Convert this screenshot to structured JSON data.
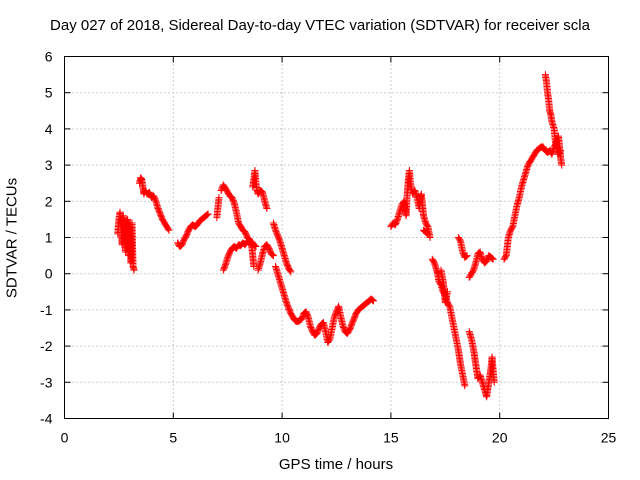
{
  "chart_data": {
    "type": "scatter",
    "title": "Day 027 of 2018, Sidereal Day-to-day VTEC variation (SDTVAR) for receiver scla",
    "xlabel": "GPS time / hours",
    "ylabel": "SDTVAR / TECUs",
    "xlim": [
      0,
      25
    ],
    "ylim": [
      -4,
      6
    ],
    "xticks": [
      "0",
      "5",
      "10",
      "15",
      "20",
      "25"
    ],
    "yticks": [
      "-4",
      "-3",
      "-2",
      "-1",
      "0",
      "1",
      "2",
      "3",
      "4",
      "5",
      "6"
    ],
    "grid": true,
    "marker": "plus",
    "color": "#ff0000",
    "series": [
      {
        "name": "SDTVAR",
        "segments": [
          [
            [
              2.45,
              1.1
            ],
            [
              2.5,
              1.5
            ],
            [
              2.55,
              1.7
            ],
            [
              2.6,
              1.3
            ],
            [
              2.65,
              0.8
            ],
            [
              2.7,
              1.6
            ],
            [
              2.75,
              1.2
            ],
            [
              2.8,
              0.6
            ],
            [
              2.85,
              1.4
            ],
            [
              2.9,
              1.5
            ],
            [
              2.95,
              0.5
            ],
            [
              3.0,
              1.3
            ],
            [
              3.05,
              0.3
            ],
            [
              3.1,
              1.4
            ],
            [
              3.15,
              0.2
            ],
            [
              3.2,
              0.1
            ]
          ],
          [
            [
              3.45,
              2.5
            ],
            [
              3.5,
              2.65
            ],
            [
              3.55,
              2.6
            ],
            [
              3.6,
              2.4
            ],
            [
              3.65,
              2.2
            ],
            [
              3.7,
              2.3
            ],
            [
              3.8,
              2.2
            ],
            [
              3.9,
              2.25
            ],
            [
              4.0,
              2.1
            ],
            [
              4.1,
              2.15
            ],
            [
              4.2,
              2.0
            ],
            [
              4.3,
              1.8
            ],
            [
              4.4,
              1.65
            ],
            [
              4.5,
              1.5
            ],
            [
              4.6,
              1.4
            ],
            [
              4.7,
              1.3
            ],
            [
              4.8,
              1.2
            ]
          ],
          [
            [
              5.2,
              0.85
            ],
            [
              5.3,
              0.75
            ],
            [
              5.4,
              0.8
            ],
            [
              5.5,
              0.95
            ],
            [
              5.6,
              1.05
            ],
            [
              5.7,
              1.2
            ],
            [
              5.8,
              1.3
            ],
            [
              5.9,
              1.35
            ],
            [
              6.0,
              1.3
            ],
            [
              6.1,
              1.35
            ],
            [
              6.2,
              1.45
            ],
            [
              6.3,
              1.5
            ],
            [
              6.4,
              1.55
            ],
            [
              6.5,
              1.6
            ],
            [
              6.6,
              1.65
            ]
          ],
          [
            [
              7.0,
              1.55
            ],
            [
              7.1,
              2.1
            ]
          ],
          [
            [
              7.2,
              2.3
            ],
            [
              7.3,
              2.45
            ],
            [
              7.4,
              2.35
            ],
            [
              7.5,
              2.25
            ],
            [
              7.6,
              2.15
            ],
            [
              7.7,
              2.1
            ],
            [
              7.8,
              1.95
            ],
            [
              7.9,
              1.7
            ],
            [
              8.0,
              1.4
            ],
            [
              8.1,
              1.3
            ],
            [
              8.2,
              1.2
            ],
            [
              8.3,
              1.15
            ],
            [
              8.4,
              1.0
            ],
            [
              8.5,
              0.95
            ],
            [
              8.6,
              0.8
            ],
            [
              8.7,
              0.2
            ]
          ],
          [
            [
              7.3,
              0.1
            ],
            [
              7.4,
              0.25
            ],
            [
              7.5,
              0.45
            ],
            [
              7.6,
              0.6
            ],
            [
              7.7,
              0.7
            ],
            [
              7.8,
              0.75
            ],
            [
              7.9,
              0.7
            ],
            [
              8.0,
              0.8
            ],
            [
              8.1,
              0.78
            ],
            [
              8.2,
              0.85
            ],
            [
              8.3,
              0.8
            ],
            [
              8.4,
              0.9
            ],
            [
              8.5,
              0.85
            ],
            [
              8.6,
              0.88
            ],
            [
              8.7,
              0.8
            ],
            [
              8.8,
              0.75
            ]
          ],
          [
            [
              8.65,
              2.4
            ],
            [
              8.7,
              2.6
            ],
            [
              8.75,
              2.85
            ],
            [
              8.8,
              2.5
            ],
            [
              8.85,
              2.3
            ],
            [
              8.9,
              2.2
            ],
            [
              9.0,
              2.3
            ],
            [
              9.1,
              2.25
            ],
            [
              9.2,
              2.0
            ],
            [
              9.3,
              1.8
            ]
          ],
          [
            [
              8.9,
              0.1
            ],
            [
              9.0,
              0.3
            ],
            [
              9.1,
              0.55
            ],
            [
              9.2,
              0.75
            ],
            [
              9.3,
              0.8
            ],
            [
              9.4,
              0.7
            ],
            [
              9.5,
              0.55
            ],
            [
              9.6,
              0.5
            ]
          ],
          [
            [
              9.6,
              1.4
            ],
            [
              9.7,
              1.2
            ],
            [
              9.8,
              1.05
            ],
            [
              9.9,
              0.9
            ],
            [
              10.0,
              0.7
            ],
            [
              10.1,
              0.5
            ],
            [
              10.2,
              0.3
            ],
            [
              10.3,
              0.15
            ],
            [
              10.4,
              0.05
            ]
          ],
          [
            [
              9.7,
              0.2
            ],
            [
              9.8,
              0.0
            ],
            [
              9.9,
              -0.2
            ],
            [
              10.0,
              -0.4
            ],
            [
              10.1,
              -0.6
            ],
            [
              10.2,
              -0.8
            ],
            [
              10.3,
              -0.95
            ],
            [
              10.4,
              -1.1
            ],
            [
              10.5,
              -1.2
            ],
            [
              10.6,
              -1.3
            ],
            [
              10.7,
              -1.32
            ],
            [
              10.8,
              -1.3
            ],
            [
              10.9,
              -1.25
            ],
            [
              11.0,
              -1.1
            ],
            [
              11.1,
              -1.05
            ],
            [
              11.2,
              -1.2
            ],
            [
              11.3,
              -1.45
            ],
            [
              11.4,
              -1.6
            ],
            [
              11.5,
              -1.7
            ],
            [
              11.6,
              -1.65
            ],
            [
              11.7,
              -1.5
            ],
            [
              11.8,
              -1.4
            ],
            [
              11.9,
              -1.35
            ],
            [
              12.0,
              -1.6
            ],
            [
              12.1,
              -1.9
            ],
            [
              12.2,
              -1.8
            ],
            [
              12.3,
              -1.5
            ],
            [
              12.4,
              -1.2
            ],
            [
              12.5,
              -1.05
            ],
            [
              12.6,
              -0.9
            ],
            [
              12.7,
              -1.2
            ],
            [
              12.8,
              -1.45
            ],
            [
              12.9,
              -1.6
            ],
            [
              13.0,
              -1.65
            ],
            [
              13.1,
              -1.55
            ],
            [
              13.2,
              -1.4
            ],
            [
              13.3,
              -1.25
            ],
            [
              13.4,
              -1.1
            ],
            [
              13.5,
              -1.0
            ],
            [
              13.6,
              -0.95
            ],
            [
              13.7,
              -0.9
            ],
            [
              13.8,
              -0.85
            ],
            [
              13.9,
              -0.8
            ],
            [
              14.0,
              -0.75
            ],
            [
              14.1,
              -0.7
            ],
            [
              14.2,
              -0.75
            ]
          ],
          [
            [
              15.0,
              1.3
            ],
            [
              15.1,
              1.4
            ],
            [
              15.2,
              1.35
            ],
            [
              15.3,
              1.5
            ],
            [
              15.4,
              1.7
            ],
            [
              15.5,
              1.9
            ],
            [
              15.6,
              2.0
            ],
            [
              15.7,
              1.6
            ],
            [
              15.75,
              2.2
            ],
            [
              15.8,
              2.6
            ],
            [
              15.85,
              2.85
            ],
            [
              15.9,
              2.5
            ],
            [
              16.0,
              2.2
            ],
            [
              16.1,
              2.3
            ],
            [
              16.2,
              2.1
            ],
            [
              16.3,
              1.8
            ],
            [
              16.35,
              2.1
            ],
            [
              16.4,
              2.2
            ],
            [
              16.5,
              1.6
            ],
            [
              16.6,
              1.4
            ],
            [
              16.7,
              1.3
            ],
            [
              16.8,
              1.0
            ]
          ],
          [
            [
              16.5,
              1.2
            ],
            [
              16.6,
              1.15
            ],
            [
              16.7,
              1.1
            ]
          ],
          [
            [
              16.9,
              0.4
            ],
            [
              17.0,
              0.3
            ],
            [
              17.1,
              0.1
            ],
            [
              17.15,
              0.0
            ],
            [
              17.2,
              -0.2
            ],
            [
              17.3,
              -0.3
            ],
            [
              17.4,
              -0.5
            ],
            [
              17.5,
              -0.6
            ],
            [
              17.6,
              -0.8
            ],
            [
              17.7,
              -0.9
            ],
            [
              17.8,
              -1.2
            ],
            [
              17.9,
              -1.5
            ],
            [
              18.0,
              -1.8
            ],
            [
              18.1,
              -2.1
            ],
            [
              18.2,
              -2.5
            ],
            [
              18.3,
              -2.8
            ],
            [
              18.4,
              -3.1
            ]
          ],
          [
            [
              17.3,
              0.1
            ],
            [
              17.4,
              -0.2
            ],
            [
              17.5,
              -0.8
            ],
            [
              17.6,
              -0.5
            ]
          ],
          [
            [
              18.1,
              1.0
            ],
            [
              18.2,
              0.9
            ],
            [
              18.3,
              0.6
            ],
            [
              18.4,
              0.45
            ],
            [
              18.5,
              0.5
            ]
          ],
          [
            [
              18.6,
              -0.1
            ],
            [
              18.7,
              0.0
            ],
            [
              18.8,
              0.1
            ],
            [
              18.9,
              0.3
            ],
            [
              19.0,
              0.55
            ],
            [
              19.1,
              0.6
            ],
            [
              19.2,
              0.4
            ],
            [
              19.3,
              0.3
            ],
            [
              19.4,
              0.35
            ],
            [
              19.5,
              0.5
            ],
            [
              19.6,
              0.45
            ],
            [
              19.7,
              0.4
            ]
          ],
          [
            [
              18.6,
              -1.6
            ],
            [
              18.7,
              -1.8
            ],
            [
              18.8,
              -2.1
            ],
            [
              18.9,
              -2.5
            ],
            [
              19.0,
              -2.9
            ],
            [
              19.1,
              -2.8
            ],
            [
              19.2,
              -3.0
            ],
            [
              19.3,
              -3.2
            ],
            [
              19.4,
              -3.4
            ],
            [
              19.5,
              -3.0
            ],
            [
              19.6,
              -2.6
            ],
            [
              19.65,
              -2.3
            ],
            [
              19.7,
              -2.7
            ],
            [
              19.75,
              -3.0
            ]
          ],
          [
            [
              20.2,
              0.4
            ],
            [
              20.3,
              0.5
            ],
            [
              20.4,
              1.0
            ],
            [
              20.5,
              1.2
            ],
            [
              20.6,
              1.3
            ],
            [
              20.7,
              1.6
            ],
            [
              20.8,
              1.9
            ],
            [
              20.9,
              2.1
            ],
            [
              21.0,
              2.4
            ],
            [
              21.1,
              2.6
            ],
            [
              21.2,
              2.8
            ],
            [
              21.3,
              3.0
            ],
            [
              21.4,
              3.1
            ],
            [
              21.5,
              3.2
            ],
            [
              21.6,
              3.3
            ],
            [
              21.7,
              3.4
            ],
            [
              21.8,
              3.45
            ],
            [
              21.9,
              3.5
            ],
            [
              22.0,
              3.5
            ],
            [
              22.1,
              3.4
            ],
            [
              22.2,
              3.35
            ],
            [
              22.3,
              3.4
            ],
            [
              22.4,
              3.3
            ],
            [
              22.5,
              3.5
            ],
            [
              22.6,
              3.6
            ],
            [
              22.7,
              3.8
            ],
            [
              22.8,
              3.2
            ],
            [
              22.85,
              3.0
            ]
          ],
          [
            [
              22.1,
              5.5
            ],
            [
              22.15,
              5.3
            ],
            [
              22.2,
              5.0
            ],
            [
              22.25,
              4.8
            ],
            [
              22.3,
              4.5
            ],
            [
              22.35,
              4.4
            ],
            [
              22.4,
              4.2
            ],
            [
              22.5,
              4.0
            ],
            [
              22.55,
              3.7
            ],
            [
              22.6,
              3.5
            ],
            [
              22.7,
              3.3
            ],
            [
              22.8,
              3.4
            ]
          ]
        ]
      }
    ]
  }
}
